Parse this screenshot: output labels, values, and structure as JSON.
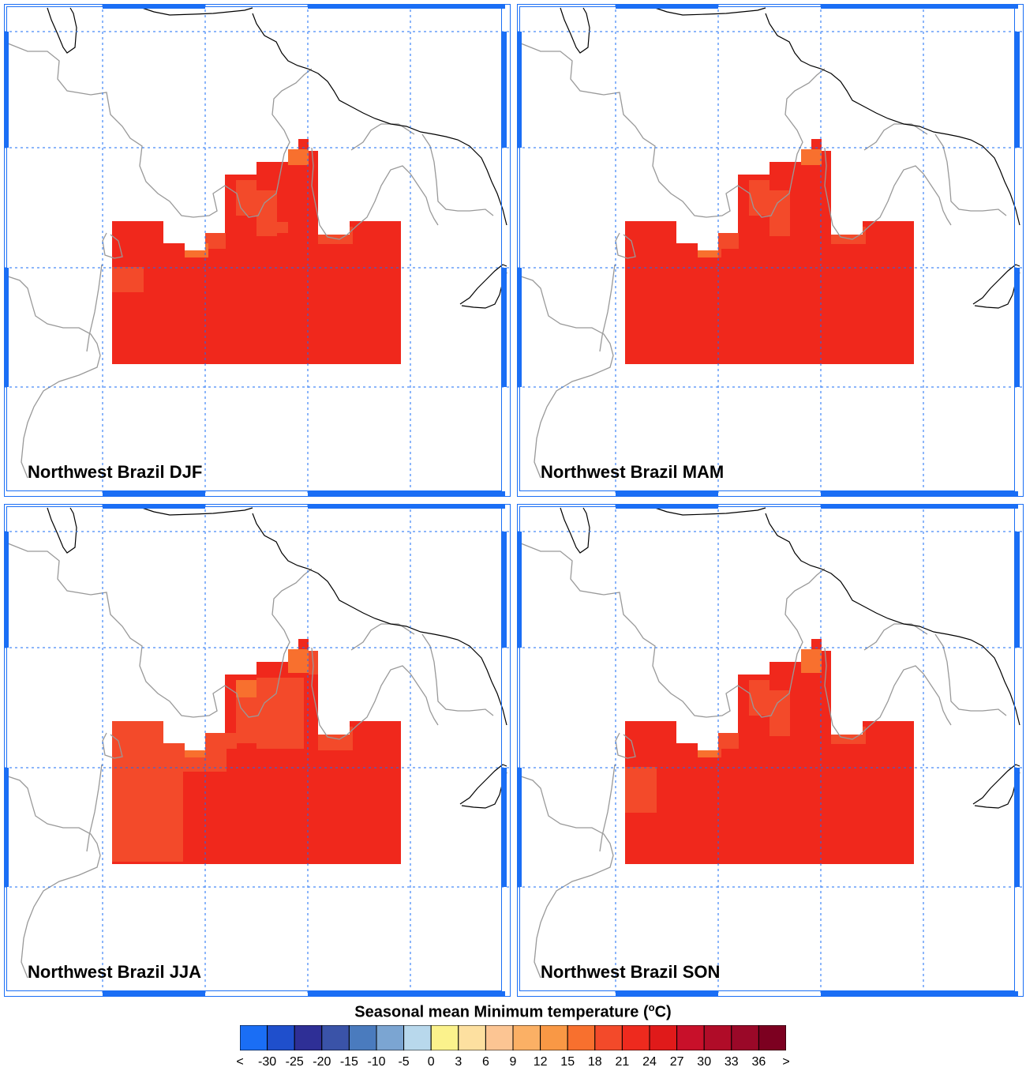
{
  "panels": [
    {
      "title": "Northwest Brazil DJF",
      "variant": "djf"
    },
    {
      "title": "Northwest Brazil MAM",
      "variant": "mam"
    },
    {
      "title": "Northwest Brazil JJA",
      "variant": "jja"
    },
    {
      "title": "Northwest Brazil SON",
      "variant": "son"
    }
  ],
  "legend": {
    "title": "Seasonal mean Minimum temperature (",
    "unit_sup": "o",
    "unit_tail": "C)",
    "labels": [
      "<",
      "-30",
      "-25",
      "-20",
      "-15",
      "-10",
      "-5",
      "0",
      "3",
      "6",
      "9",
      "12",
      "15",
      "18",
      "21",
      "24",
      "27",
      "30",
      "33",
      "36",
      ">"
    ],
    "colors": [
      "#1a6ef5",
      "#1f4fcc",
      "#2e2f96",
      "#3a53a8",
      "#4a7bbe",
      "#7ba5d2",
      "#b8d8ec",
      "#fbf28c",
      "#fde0a0",
      "#fcc593",
      "#fbb065",
      "#f99845",
      "#f8702e",
      "#f34a2a",
      "#ee2a1e",
      "#e01a1a",
      "#c8102a",
      "#b00c28",
      "#9a0828",
      "#7c0020"
    ]
  },
  "colors": {
    "grid": "#1a6ef5",
    "frame": "#1a6ef5",
    "coast": "#000000",
    "border": "#999999",
    "fill_main": "#f0281c",
    "fill_warm": "#f34a2a",
    "fill_mid": "#f8702e"
  }
}
